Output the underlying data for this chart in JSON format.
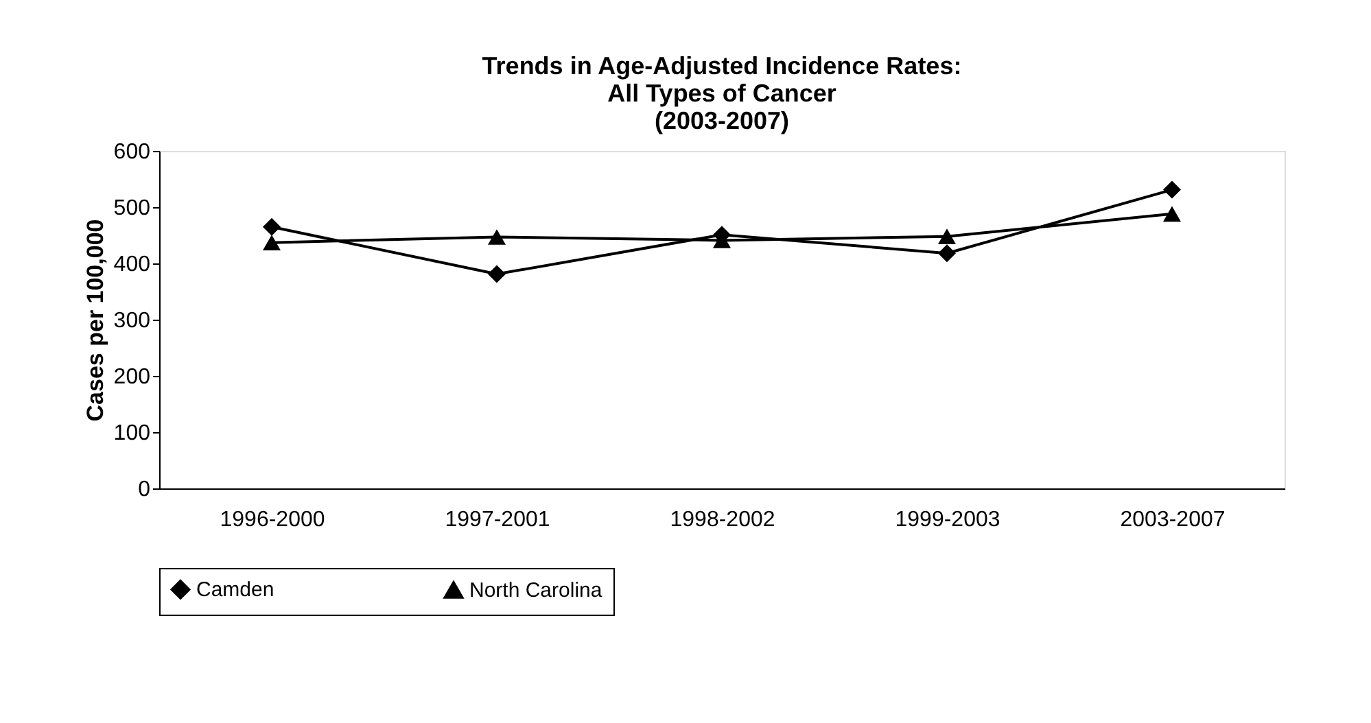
{
  "chart_data": {
    "type": "line",
    "title": [
      "Trends in Age-Adjusted Incidence Rates:",
      "All Types of Cancer",
      "(2003-2007)"
    ],
    "ylabel": "Cases per 100,000",
    "categories": [
      "1996-2000",
      "1997-2001",
      "1998-2002",
      "1999-2003",
      "2003-2007"
    ],
    "series": [
      {
        "name": "Camden",
        "color": "#000000",
        "marker": "diamond",
        "values": [
          465,
          381,
          451,
          418,
          531
        ]
      },
      {
        "name": "North Carolina",
        "color": "#000000",
        "marker": "triangle",
        "values": [
          437,
          447,
          441,
          448,
          488
        ]
      }
    ],
    "ylim": [
      0,
      600
    ],
    "yticks": [
      0,
      100,
      200,
      300,
      400,
      500,
      600
    ],
    "grid": false,
    "legend": "bottom",
    "line_style": "solid"
  }
}
